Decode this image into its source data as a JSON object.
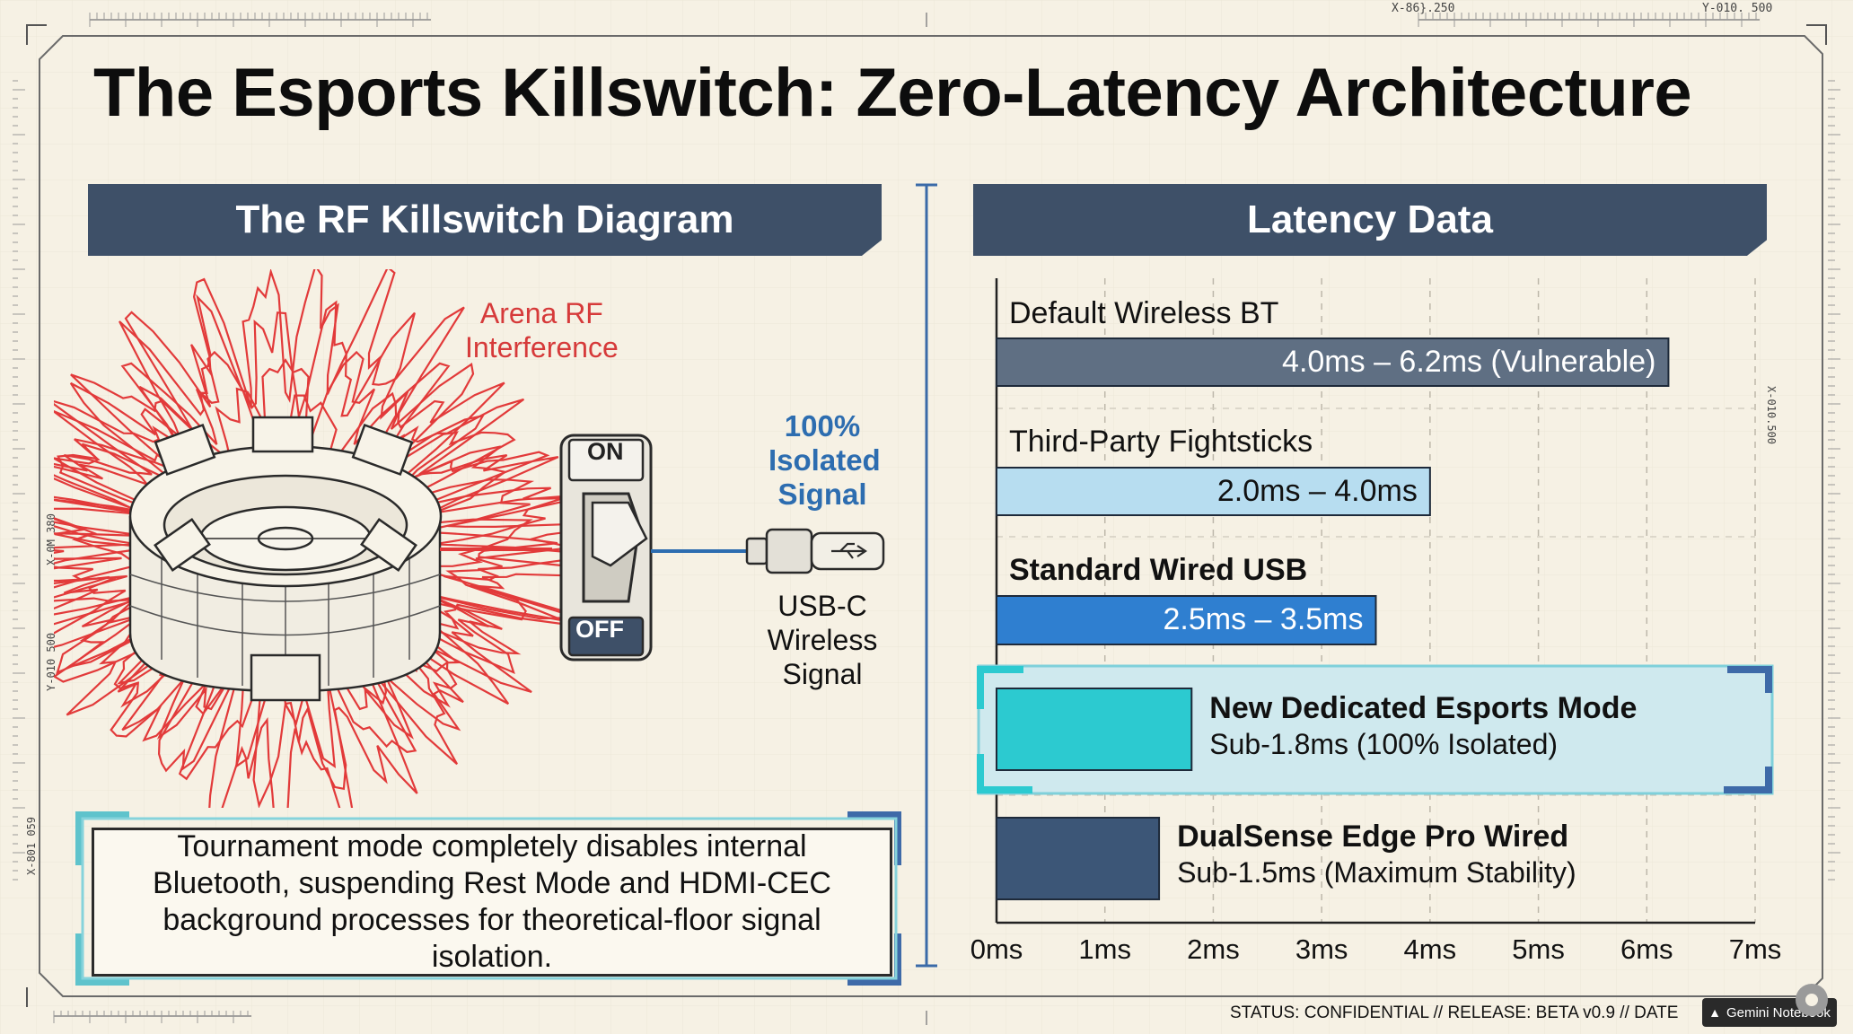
{
  "page": {
    "title": "The Esports Killswitch: Zero-Latency Architecture"
  },
  "coords": {
    "top_x": "X-86}.250",
    "top_y": "Y-010. 500",
    "right_side": "X-010.500",
    "left_side_1": "X-0M 380",
    "left_side_2": "Y-010 500",
    "left_side_3": "X-801 059"
  },
  "left_panel": {
    "banner": "The RF Killswitch Diagram",
    "interference_label": [
      "Arena RF",
      "Interference"
    ],
    "switch_on": "ON",
    "switch_off": "OFF",
    "isolated_label": [
      "100%",
      "Isolated",
      "Signal"
    ],
    "usb_label": [
      "USB-C",
      "Wireless",
      "Signal"
    ],
    "caption": "Tournament mode completely disables internal Bluetooth, suspending Rest Mode and HDMI-CEC background processes for theoretical-floor signal isolation.",
    "colors": {
      "interference": "#e23a3a",
      "signal": "#2d6db0",
      "banner": "#3e5068"
    }
  },
  "right_panel": {
    "banner": "Latency Data"
  },
  "chart_data": {
    "type": "bar",
    "orientation": "horizontal",
    "title": "Latency Data",
    "xlim": [
      0,
      7
    ],
    "x_ticks": [
      "0ms",
      "1ms",
      "2ms",
      "3ms",
      "4ms",
      "5ms",
      "6ms",
      "7ms"
    ],
    "grid": true,
    "bars": [
      {
        "category": "Default Wireless BT",
        "start": 0,
        "end": 6.2,
        "label": "4.0ms – 6.2ms (Vulnerable)",
        "color": "#5f6f83",
        "label_inside": true
      },
      {
        "category": "Third-Party Fightsticks",
        "start": 0,
        "end": 4.0,
        "label": "2.0ms – 4.0ms",
        "color": "#b7ddf0",
        "label_inside": true
      },
      {
        "category": "Standard Wired USB",
        "start": 0,
        "end": 3.5,
        "label": "2.5ms – 3.5ms",
        "color": "#2f7fd0",
        "label_inside": true
      },
      {
        "category": "New Dedicated Esports Mode",
        "start": 0,
        "end": 1.8,
        "label": "Sub-1.8ms (100% Isolated)",
        "color": "#2ccad0",
        "label_inside": false,
        "highlight": true
      },
      {
        "category": "DualSense Edge Pro Wired",
        "start": 0,
        "end": 1.5,
        "label": "Sub-1.5ms (Maximum Stability)",
        "color": "#3c5677",
        "label_inside": false
      }
    ]
  },
  "footer": {
    "status": "STATUS: CONFIDENTIAL  //  RELEASE: BETA v0.9  //  DATE",
    "badge": "Gemini Notebook"
  }
}
